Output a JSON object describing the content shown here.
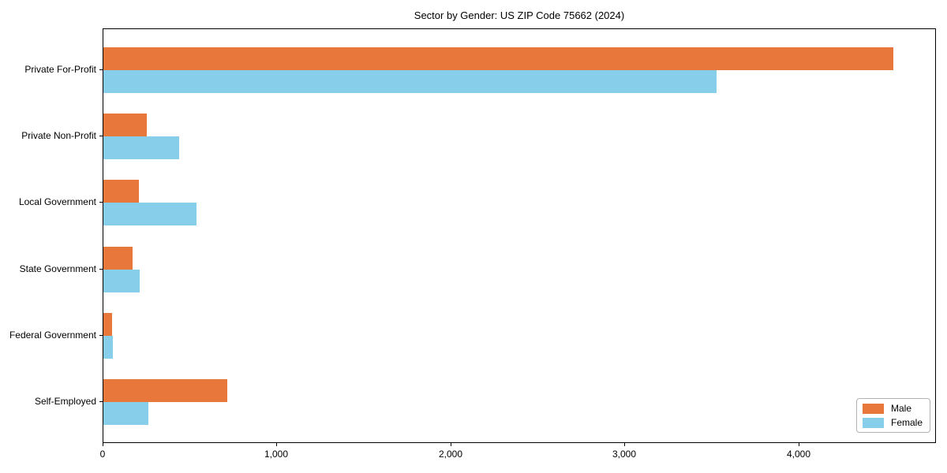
{
  "chart_data": {
    "type": "bar",
    "orientation": "horizontal",
    "title": "Sector by Gender: US ZIP Code 75662 (2024)",
    "categories": [
      "Private For-Profit",
      "Private Non-Profit",
      "Local Government",
      "State Government",
      "Federal Government",
      "Self-Employed"
    ],
    "series": [
      {
        "name": "Male",
        "color": "#e8773b",
        "values": [
          4550,
          250,
          205,
          170,
          50,
          715
        ]
      },
      {
        "name": "Female",
        "color": "#87ceeb",
        "values": [
          3530,
          435,
          535,
          210,
          55,
          260
        ]
      }
    ],
    "xlabel": "",
    "ylabel": "",
    "xlim": [
      0,
      4790
    ],
    "xticks": {
      "values": [
        0,
        1000,
        2000,
        3000,
        4000
      ],
      "labels": [
        "0",
        "1,000",
        "2,000",
        "3,000",
        "4,000"
      ]
    },
    "grid": false,
    "legend": {
      "position": "lower-right",
      "items": [
        "Male",
        "Female"
      ]
    }
  }
}
